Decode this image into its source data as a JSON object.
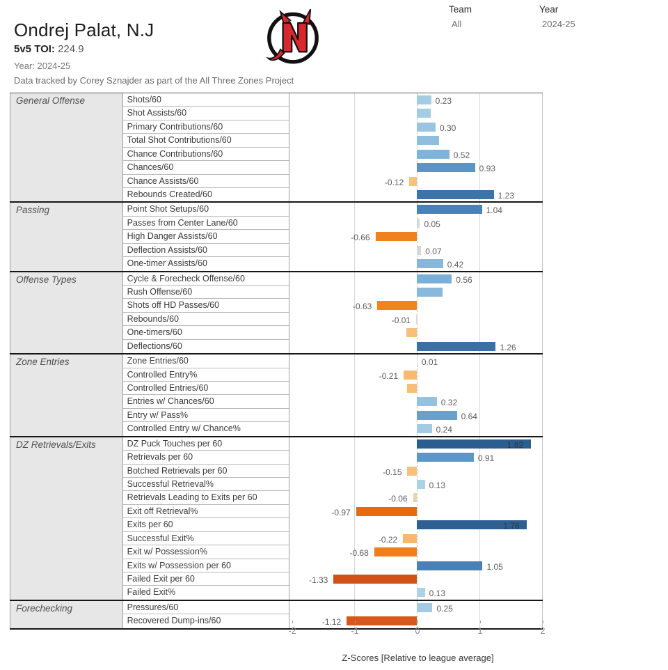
{
  "header": {
    "player_name": "Ondrej Palat, N.J",
    "toi_label": "5v5 TOI:",
    "toi_value": "224.9",
    "year_line": "Year: 2024-25",
    "credit": "Data tracked by Corey Sznajder as part of the All Three Zones Project",
    "logo_name": "new-jersey-devils-logo"
  },
  "filters": {
    "team_label": "Team",
    "team_value": "All",
    "year_label": "Year",
    "year_value": "2024-25"
  },
  "chart_data": {
    "type": "bar",
    "orientation": "horizontal",
    "xlabel": "Z-Scores [Relative to league average]",
    "xlim": [
      -2,
      2
    ],
    "x_ticks": [
      -2,
      -1,
      0,
      1,
      2
    ],
    "grid": "on",
    "zero_line": "dashed",
    "palette": {
      "strong_positive": "#2b5d8e",
      "positive": "#4a80b5",
      "weak_positive": "#a4cde4",
      "neutral": "#d3d9d3",
      "weak_negative": "#f9c07e",
      "negative": "#f0821d",
      "strong_negative": "#d25116"
    },
    "sections": [
      {
        "name": "General Offense",
        "rows": [
          {
            "metric": "Shots/60",
            "value": 0.23,
            "label": "0.23",
            "color": "#a4cde4"
          },
          {
            "metric": "Shot Assists/60",
            "value": 0.22,
            "label": "",
            "color": "#a4cde4"
          },
          {
            "metric": "Primary Contributions/60",
            "value": 0.3,
            "label": "0.30",
            "color": "#99c5e1"
          },
          {
            "metric": "Total Shot Contributions/60",
            "value": 0.36,
            "label": "",
            "color": "#90bfde"
          },
          {
            "metric": "Chance Contributions/60",
            "value": 0.52,
            "label": "0.52",
            "color": "#7fb3d9"
          },
          {
            "metric": "Chances/60",
            "value": 0.93,
            "label": "0.93",
            "color": "#5b95c8"
          },
          {
            "metric": "Chance Assists/60",
            "value": -0.12,
            "label": "-0.12",
            "color": "#f9c07e"
          },
          {
            "metric": "Rebounds Created/60",
            "value": 1.23,
            "label": "1.23",
            "color": "#3d73a9"
          }
        ]
      },
      {
        "name": "Passing",
        "rows": [
          {
            "metric": "Point Shot Setups/60",
            "value": 1.04,
            "label": "1.04",
            "color": "#4b81b7"
          },
          {
            "metric": "Passes from Center Lane/60",
            "value": 0.05,
            "label": "0.05",
            "color": "#d3d9d3"
          },
          {
            "metric": "High Danger Assists/60",
            "value": -0.66,
            "label": "-0.66",
            "color": "#f0821d"
          },
          {
            "metric": "Deflection Assists/60",
            "value": 0.07,
            "label": "0.07",
            "color": "#d3d9d3"
          },
          {
            "metric": "One-timer Assists/60",
            "value": 0.42,
            "label": "0.42",
            "color": "#87b8dc"
          }
        ]
      },
      {
        "name": "Offense Types",
        "rows": [
          {
            "metric": "Cycle & Forecheck Offense/60",
            "value": 0.56,
            "label": "0.56",
            "color": "#7ab0d7"
          },
          {
            "metric": "Rush Offense/60",
            "value": 0.41,
            "label": "",
            "color": "#88b9dc"
          },
          {
            "metric": "Shots off HD Passes/60",
            "value": -0.63,
            "label": "-0.63",
            "color": "#f0851f"
          },
          {
            "metric": "Rebounds/60",
            "value": -0.01,
            "label": "-0.01",
            "color": "#ddd8cc"
          },
          {
            "metric": "One-timers/60",
            "value": -0.17,
            "label": "",
            "color": "#f8bf7b"
          },
          {
            "metric": "Deflections/60",
            "value": 1.26,
            "label": "1.26",
            "color": "#3b70a6"
          }
        ]
      },
      {
        "name": "Zone Entries",
        "rows": [
          {
            "metric": "Zone Entries/60",
            "value": 0.01,
            "label": "0.01",
            "color": "#d6dad5"
          },
          {
            "metric": "Controlled Entry%",
            "value": -0.21,
            "label": "-0.21",
            "color": "#f9ba70"
          },
          {
            "metric": "Controlled Entries/60",
            "value": -0.16,
            "label": "",
            "color": "#f9bd77"
          },
          {
            "metric": "Entries w/ Chances/60",
            "value": 0.32,
            "label": "0.32",
            "color": "#96c2e0"
          },
          {
            "metric": "Entry w/ Pass%",
            "value": 0.64,
            "label": "0.64",
            "color": "#68a0ce"
          },
          {
            "metric": "Controlled Entry w/ Chance%",
            "value": 0.24,
            "label": "0.24",
            "color": "#a3cce3"
          }
        ]
      },
      {
        "name": "DZ Retrievals/Exits",
        "rows": [
          {
            "metric": "DZ Puck Touches per 60",
            "value": 1.82,
            "label": "1.82",
            "color": "#2b5d8e",
            "label_inside": true
          },
          {
            "metric": "Retrievals per 60",
            "value": 0.91,
            "label": "0.91",
            "color": "#5d97c9"
          },
          {
            "metric": "Botched Retrievals per 60",
            "value": -0.15,
            "label": "-0.15",
            "color": "#f9c07c"
          },
          {
            "metric": "Successful Retrieval%",
            "value": 0.13,
            "label": "0.13",
            "color": "#add2e7"
          },
          {
            "metric": "Retrievals Leading to Exits per 60",
            "value": -0.06,
            "label": "-0.06",
            "color": "#ecd2a9"
          },
          {
            "metric": "Exit off Retrieval%",
            "value": -0.97,
            "label": "-0.97",
            "color": "#e56a10"
          },
          {
            "metric": "Exits per 60",
            "value": 1.76,
            "label": "1.76",
            "color": "#2d5f90",
            "label_inside": true
          },
          {
            "metric": "Successful Exit%",
            "value": -0.22,
            "label": "-0.22",
            "color": "#f9b86d"
          },
          {
            "metric": "Exit w/ Possession%",
            "value": -0.68,
            "label": "-0.68",
            "color": "#ef7f1b"
          },
          {
            "metric": "Exits w/ Possession per 60",
            "value": 1.05,
            "label": "1.05",
            "color": "#4a80b6"
          },
          {
            "metric": "Failed Exit per 60",
            "value": -1.33,
            "label": "-1.33",
            "color": "#d25116"
          },
          {
            "metric": "Failed Exit%",
            "value": 0.13,
            "label": "0.13",
            "color": "#add2e7"
          }
        ]
      },
      {
        "name": "Forechecking",
        "rows": [
          {
            "metric": "Pressures/60",
            "value": 0.25,
            "label": "0.25",
            "color": "#a2cbe4"
          },
          {
            "metric": "Recovered Dump-ins/60",
            "value": -1.12,
            "label": "-1.12",
            "color": "#d8571d"
          }
        ]
      }
    ]
  }
}
